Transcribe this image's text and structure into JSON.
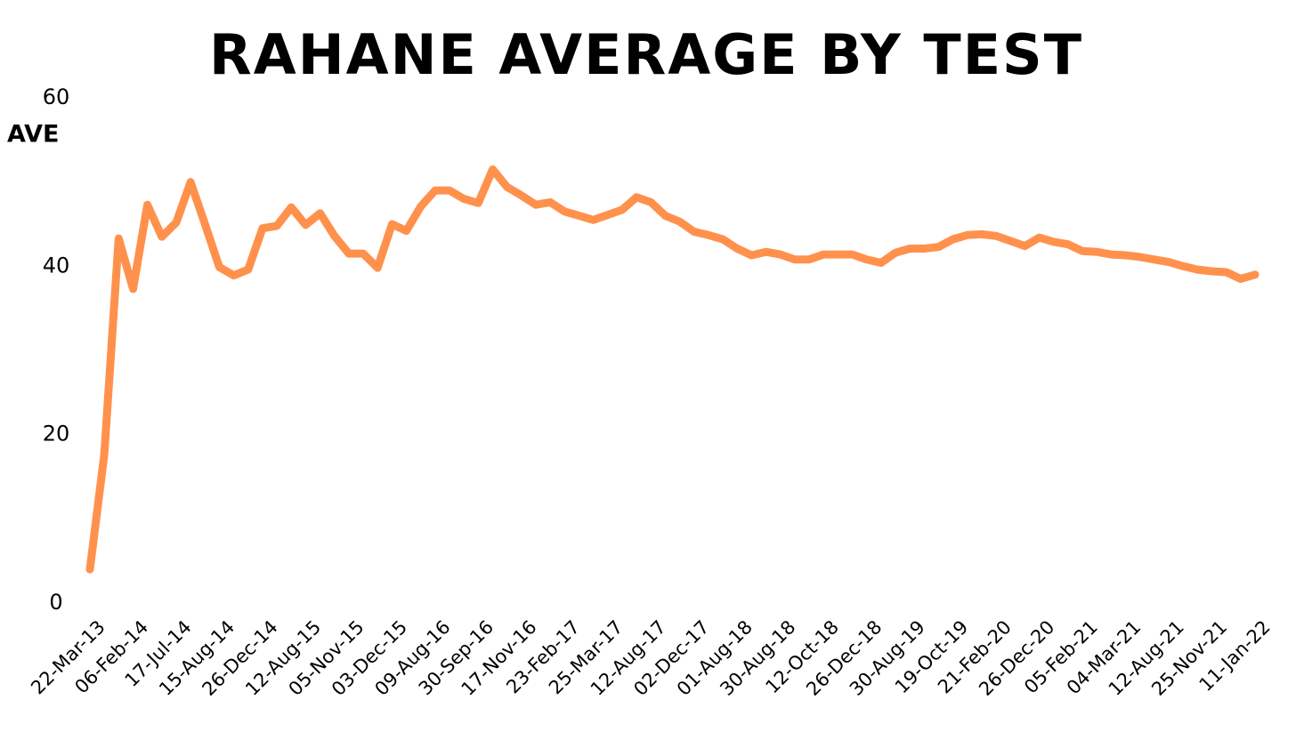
{
  "chart_data": {
    "type": "line",
    "title": "RAHANE AVERAGE BY TEST",
    "y_label": "AVE",
    "categories": [
      "22-Mar-13",
      null,
      null,
      "06-Feb-14",
      null,
      null,
      "17-Jul-14",
      null,
      null,
      "15-Aug-14",
      null,
      null,
      "26-Dec-14",
      null,
      null,
      "12-Aug-15",
      null,
      null,
      "05-Nov-15",
      null,
      null,
      "03-Dec-15",
      null,
      null,
      "09-Aug-16",
      null,
      null,
      "30-Sep-16",
      null,
      null,
      "17-Nov-16",
      null,
      null,
      "23-Feb-17",
      null,
      null,
      "25-Mar-17",
      null,
      null,
      "12-Aug-17",
      null,
      null,
      "02-Dec-17",
      null,
      null,
      "01-Aug-18",
      null,
      null,
      "30-Aug-18",
      null,
      null,
      "12-Oct-18",
      null,
      null,
      "26-Dec-18",
      null,
      null,
      "30-Aug-19",
      null,
      null,
      "19-Oct-19",
      null,
      null,
      "21-Feb-20",
      null,
      null,
      "26-Dec-20",
      null,
      null,
      "05-Feb-21",
      null,
      null,
      "04-Mar-21",
      null,
      null,
      "12-Aug-21",
      null,
      null,
      "25-Nov-21",
      null,
      null,
      "11-Jan-22"
    ],
    "values": [
      4.0,
      17.7,
      43.3,
      37.3,
      47.3,
      43.5,
      45.2,
      50.0,
      45.0,
      39.9,
      38.9,
      39.6,
      44.5,
      44.8,
      47.0,
      44.9,
      46.3,
      43.6,
      41.5,
      41.5,
      39.8,
      45.0,
      44.2,
      47.1,
      49.0,
      49.0,
      48.0,
      47.5,
      51.5,
      49.4,
      48.4,
      47.3,
      47.6,
      46.5,
      46.0,
      45.5,
      46.1,
      46.7,
      48.2,
      47.6,
      46.0,
      45.3,
      44.1,
      43.7,
      43.2,
      42.1,
      41.3,
      41.7,
      41.4,
      40.8,
      40.8,
      41.4,
      41.4,
      41.4,
      40.8,
      40.4,
      41.6,
      42.1,
      42.1,
      42.3,
      43.2,
      43.7,
      43.8,
      43.6,
      43.0,
      42.4,
      43.4,
      42.9,
      42.6,
      41.8,
      41.7,
      41.4,
      41.3,
      41.1,
      40.8,
      40.5,
      40.0,
      39.6,
      39.4,
      39.3,
      38.5,
      39.0
    ],
    "color": "#ff914d",
    "ylim": [
      0,
      60
    ],
    "yticks": [
      0,
      20,
      40,
      60
    ],
    "grid": false
  }
}
